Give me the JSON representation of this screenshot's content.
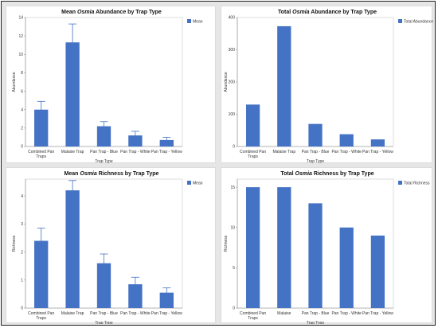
{
  "chart_data": [
    {
      "type": "bar",
      "title": {
        "pre": "Mean ",
        "italic": "Osmia",
        "post": " Abundance by Trap Type"
      },
      "xlabel": "Trap Type",
      "ylabel": "Abundance",
      "categories": [
        [
          "Combined Pan",
          "Traps"
        ],
        [
          "Malaise Trap"
        ],
        [
          "Pan Trap - Blue"
        ],
        [
          "Pan Trap - White"
        ],
        [
          "Pan Trap - Yellow"
        ]
      ],
      "series": [
        {
          "name": "Mean",
          "values": [
            4.0,
            11.3,
            2.2,
            1.2,
            0.7
          ]
        }
      ],
      "error": [
        0.9,
        2.0,
        0.5,
        0.45,
        0.3
      ],
      "ylim": [
        0,
        14
      ],
      "yticks": [
        0,
        2,
        4,
        6,
        8,
        10,
        12,
        14
      ],
      "legend": "top-right",
      "color": "#4472c4"
    },
    {
      "type": "bar",
      "title": {
        "pre": "Total ",
        "italic": "Osmia",
        "post": " Abundance by Trap Type"
      },
      "xlabel": "Trap Type",
      "ylabel": "Abundance",
      "categories": [
        [
          "Combined Pan",
          "Traps"
        ],
        [
          "Malaise Trap"
        ],
        [
          "Pan Trap - Blue"
        ],
        [
          "Pan Trap - White"
        ],
        [
          "Pan Trap - Yellow"
        ]
      ],
      "series": [
        {
          "name": "Total Abundance",
          "values": [
            130,
            373,
            70,
            38,
            22
          ]
        }
      ],
      "ylim": [
        0,
        400
      ],
      "yticks": [
        0,
        100,
        200,
        300,
        400
      ],
      "legend": "top-right",
      "color": "#4472c4"
    },
    {
      "type": "bar",
      "title": {
        "pre": "Mean ",
        "italic": "Osmia",
        "post": " Richness by Trap Type"
      },
      "xlabel": "Trap Type",
      "ylabel": "Richness",
      "categories": [
        [
          "Combined Pan",
          "Traps"
        ],
        [
          "Malaise Trap"
        ],
        [
          "Pan Trap - Blue"
        ],
        [
          "Pan Trap - White"
        ],
        [
          "Pan Trap - Yellow"
        ]
      ],
      "series": [
        {
          "name": "Mean",
          "values": [
            2.4,
            4.2,
            1.6,
            0.85,
            0.55
          ]
        }
      ],
      "error": [
        0.45,
        0.35,
        0.33,
        0.25,
        0.17
      ],
      "ylim": [
        0,
        4.6
      ],
      "yticks": [
        0,
        1,
        2,
        3,
        4
      ],
      "legend": "top-right",
      "color": "#4472c4"
    },
    {
      "type": "bar",
      "title": {
        "pre": "Total ",
        "italic": "Osmia",
        "post": " Richness by Trap Type"
      },
      "xlabel": "Trap Type",
      "ylabel": "Richness",
      "categories": [
        [
          "Combined Pan",
          "Traps"
        ],
        [
          "Malaise"
        ],
        [
          "Pan Trap - Blue"
        ],
        [
          "Pan Trap - White"
        ],
        [
          "Pan Trap - Yellow"
        ]
      ],
      "series": [
        {
          "name": "Total Richness",
          "values": [
            15,
            15,
            13,
            10,
            9
          ]
        }
      ],
      "ylim": [
        0,
        16
      ],
      "yticks": [
        0,
        5,
        10,
        15
      ],
      "legend": "top-right",
      "color": "#4472c4"
    }
  ]
}
